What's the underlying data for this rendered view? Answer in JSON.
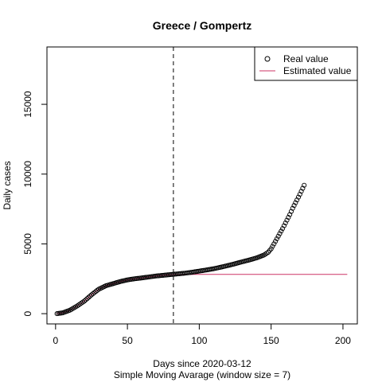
{
  "chart_data": {
    "type": "scatter",
    "title": "Greece / Gompertz",
    "xlabel": "Days since 2020-03-12",
    "xlabel2": "Simple Moving Avarage (window size = 7)",
    "ylabel": "Daily cases",
    "xlim": [
      -6,
      210
    ],
    "ylim": [
      -735,
      19110
    ],
    "xticks": [
      0,
      50,
      100,
      150,
      200
    ],
    "yticks": [
      0,
      5000,
      10000,
      15000
    ],
    "grid": false,
    "legend_position": "top-right",
    "vline_x": 82,
    "series": [
      {
        "name": "Real value",
        "marker": "open-circle",
        "color": "#000000",
        "x_start": 1,
        "x_end": 173,
        "anchors": [
          [
            1,
            0
          ],
          [
            5,
            60
          ],
          [
            10,
            250
          ],
          [
            15,
            550
          ],
          [
            20,
            900
          ],
          [
            25,
            1350
          ],
          [
            30,
            1750
          ],
          [
            35,
            2000
          ],
          [
            40,
            2150
          ],
          [
            45,
            2300
          ],
          [
            50,
            2420
          ],
          [
            55,
            2500
          ],
          [
            60,
            2560
          ],
          [
            65,
            2630
          ],
          [
            70,
            2700
          ],
          [
            75,
            2750
          ],
          [
            80,
            2800
          ],
          [
            85,
            2850
          ],
          [
            90,
            2900
          ],
          [
            95,
            2970
          ],
          [
            100,
            3050
          ],
          [
            105,
            3130
          ],
          [
            110,
            3220
          ],
          [
            115,
            3330
          ],
          [
            120,
            3450
          ],
          [
            125,
            3580
          ],
          [
            130,
            3720
          ],
          [
            135,
            3850
          ],
          [
            140,
            4000
          ],
          [
            145,
            4200
          ],
          [
            148,
            4400
          ],
          [
            150,
            4650
          ],
          [
            152,
            5000
          ],
          [
            155,
            5550
          ],
          [
            158,
            6100
          ],
          [
            160,
            6500
          ],
          [
            163,
            7100
          ],
          [
            165,
            7550
          ],
          [
            168,
            8150
          ],
          [
            170,
            8550
          ],
          [
            173,
            9200
          ]
        ]
      },
      {
        "name": "Estimated value",
        "type": "line",
        "color": "#cc3366",
        "x_end": 203,
        "anchors": [
          [
            1,
            0
          ],
          [
            5,
            60
          ],
          [
            10,
            250
          ],
          [
            15,
            550
          ],
          [
            20,
            900
          ],
          [
            25,
            1350
          ],
          [
            30,
            1750
          ],
          [
            35,
            2000
          ],
          [
            40,
            2150
          ],
          [
            45,
            2300
          ],
          [
            50,
            2420
          ],
          [
            55,
            2500
          ],
          [
            60,
            2560
          ],
          [
            65,
            2630
          ],
          [
            70,
            2700
          ],
          [
            75,
            2750
          ],
          [
            80,
            2790
          ],
          [
            85,
            2805
          ],
          [
            90,
            2810
          ],
          [
            100,
            2812
          ],
          [
            150,
            2813
          ],
          [
            203,
            2813
          ]
        ]
      }
    ]
  }
}
